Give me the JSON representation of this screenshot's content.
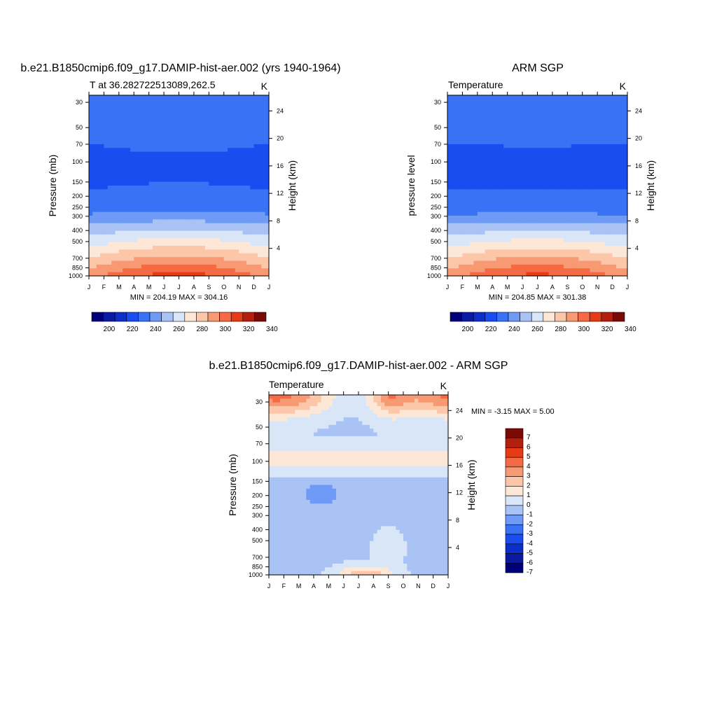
{
  "chart_data": [
    {
      "type": "heatmap",
      "title": "b.e21.B1850cmip6.f09_g17.DAMIP-hist-aer.002 (yrs 1940-1964)",
      "subtitle_left": "T at 36.282722513089,262.5",
      "subtitle_right": "K",
      "ylabel": "Pressure (mb)",
      "ylabel_right": "Height (km)",
      "stats": "MIN = 204.19 MAX = 304.16",
      "x_ticks": [
        "J",
        "F",
        "M",
        "A",
        "M",
        "J",
        "J",
        "A",
        "S",
        "O",
        "N",
        "D",
        "J"
      ],
      "y_ticks": [
        "30",
        "50",
        "70",
        "100",
        "150",
        "200",
        "250",
        "300",
        "400",
        "500",
        "700",
        "850",
        "1000"
      ],
      "y_ticks_right": [
        "24",
        "20",
        "16",
        "12",
        "8",
        "4"
      ],
      "colorbar_ticks": [
        "200",
        "220",
        "240",
        "260",
        "280",
        "300",
        "320",
        "340"
      ],
      "colorbar_levels": [
        195,
        200,
        205,
        210,
        220,
        230,
        240,
        250,
        260,
        270,
        280,
        290,
        300,
        310,
        320,
        330,
        340
      ],
      "surface": {
        "p0": 208,
        "amp_low": 20,
        "amp_high": 6,
        "anomaly": 0
      }
    },
    {
      "type": "heatmap",
      "title": "ARM SGP",
      "subtitle_left": "Temperature",
      "subtitle_right": "K",
      "ylabel": "pressure level",
      "ylabel_right": "Height (km)",
      "stats": "MIN = 204.85 MAX = 301.38",
      "x_ticks": [
        "J",
        "F",
        "M",
        "A",
        "M",
        "J",
        "J",
        "A",
        "S",
        "O",
        "N",
        "D",
        "J"
      ],
      "y_ticks": [
        "30",
        "50",
        "70",
        "100",
        "150",
        "200",
        "250",
        "300",
        "400",
        "500",
        "700",
        "850",
        "1000"
      ],
      "y_ticks_right": [
        "24",
        "20",
        "16",
        "12",
        "8",
        "4"
      ],
      "colorbar_ticks": [
        "200",
        "220",
        "240",
        "260",
        "280",
        "300",
        "320",
        "340"
      ],
      "surface": {
        "p0": 208,
        "amp_low": 18,
        "amp_high": 5,
        "anomaly": 0
      }
    },
    {
      "type": "heatmap",
      "title": "b.e21.B1850cmip6.f09_g17.DAMIP-hist-aer.002 - ARM SGP",
      "subtitle_left": "Temperature",
      "subtitle_right": "K",
      "ylabel": "Pressure (mb)",
      "ylabel_right": "Height (km)",
      "stats": "MIN =  -3.15 MAX =   5.00",
      "x_ticks": [
        "J",
        "F",
        "M",
        "A",
        "M",
        "J",
        "J",
        "A",
        "S",
        "O",
        "N",
        "D",
        "J"
      ],
      "y_ticks": [
        "30",
        "50",
        "70",
        "100",
        "150",
        "200",
        "250",
        "300",
        "400",
        "500",
        "700",
        "850",
        "1000"
      ],
      "y_ticks_right": [
        "24",
        "20",
        "16",
        "12",
        "8",
        "4"
      ],
      "colorbar_ticks": [
        "7",
        "6",
        "5",
        "4",
        "3",
        "2",
        "1",
        "0",
        "-1",
        "-2",
        "-3",
        "-4",
        "-5",
        "-6",
        "-7"
      ],
      "colorbar_levels": [
        -7,
        -6,
        -5,
        -4,
        -3,
        -2,
        -1,
        0,
        1,
        2,
        3,
        4,
        5,
        6,
        7
      ],
      "surface": {
        "anomaly": 1
      }
    }
  ],
  "colors": {
    "palette": [
      "#00007a",
      "#0a1aa3",
      "#0b2fc8",
      "#1a4df0",
      "#3a72f5",
      "#6f9af5",
      "#a9c3f4",
      "#d9e6f8",
      "#fde8d8",
      "#fbc7a8",
      "#f79a74",
      "#f46a44",
      "#e73b16",
      "#b11f0e",
      "#7a0a05"
    ],
    "diff_palette": [
      "#00007a",
      "#0a1aa3",
      "#0b2fc8",
      "#1a4df0",
      "#3a72f5",
      "#6f9af5",
      "#a9c3f4",
      "#d9e6f8",
      "#fde8d8",
      "#fbc7a8",
      "#f79a74",
      "#f46a44",
      "#e73b16",
      "#b11f0e",
      "#7a0a05"
    ]
  }
}
